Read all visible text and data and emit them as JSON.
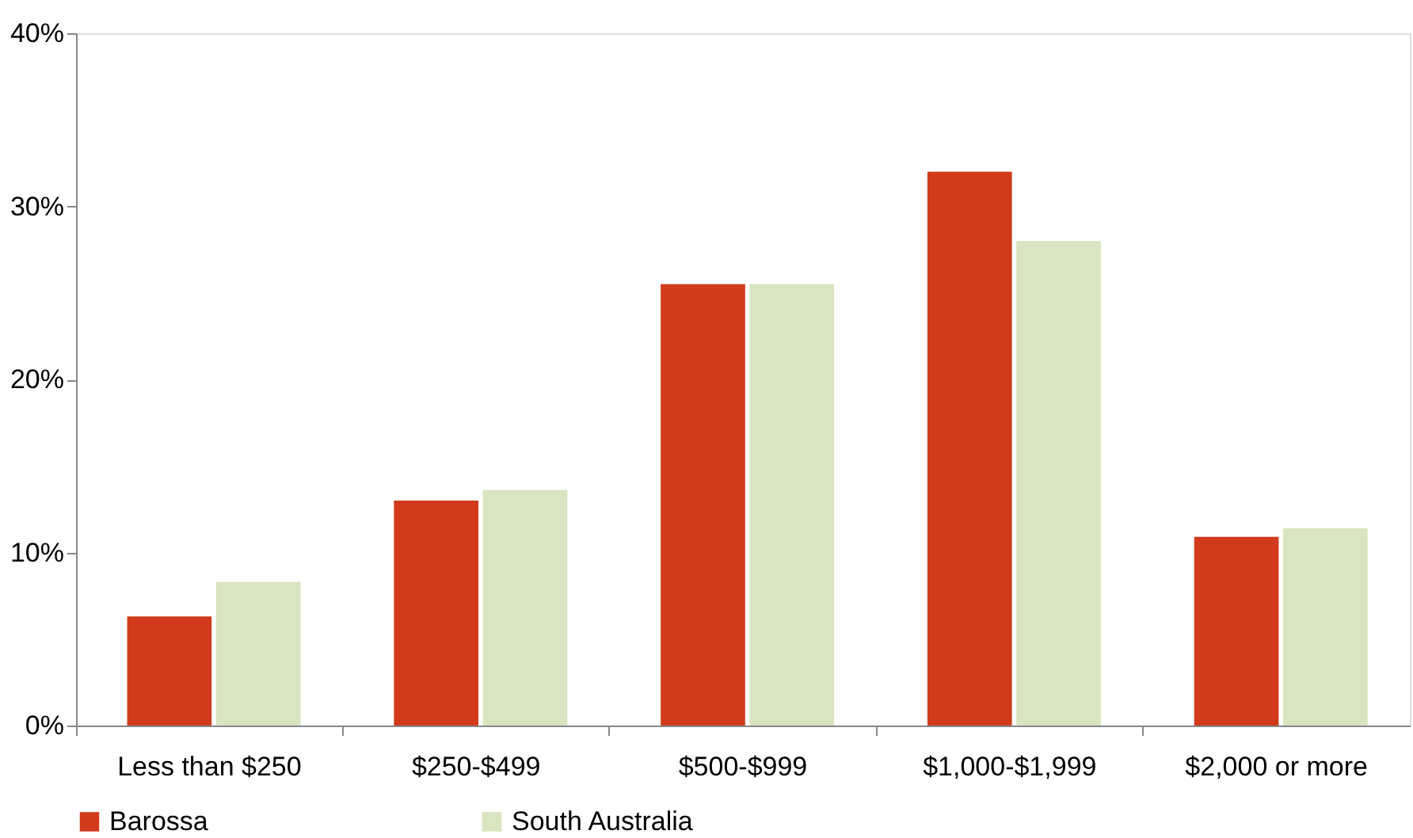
{
  "chart_data": {
    "type": "bar",
    "categories": [
      "Less than $250",
      "$250-$499",
      "$500-$999",
      "$1,000-$1,999",
      "$2,000 or more"
    ],
    "series": [
      {
        "name": "Barossa",
        "color": "#d13b1c",
        "values": [
          6.3,
          13.0,
          25.5,
          32.0,
          10.9
        ]
      },
      {
        "name": "South Australia",
        "color": "#d9e4c0",
        "values": [
          8.3,
          13.6,
          25.5,
          28.0,
          11.4
        ]
      }
    ],
    "ylim": [
      0,
      40
    ],
    "yticks": [
      {
        "value": 0,
        "label": "0%"
      },
      {
        "value": 10,
        "label": "10%"
      },
      {
        "value": 20,
        "label": "20%"
      },
      {
        "value": 30,
        "label": "30%"
      },
      {
        "value": 40,
        "label": "40%"
      }
    ],
    "grid": false,
    "legend": "bottom"
  }
}
